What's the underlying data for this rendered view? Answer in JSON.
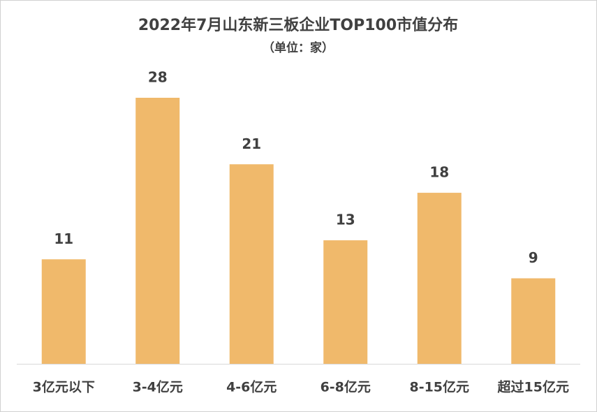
{
  "chart_data": {
    "type": "bar",
    "title": "2022年7月山东新三板企业TOP100市值分布",
    "subtitle": "（单位：家）",
    "categories": [
      "3亿元以下",
      "3-4亿元",
      "4-6亿元",
      "6-8亿元",
      "8-15亿元",
      "超过15亿元"
    ],
    "values": [
      11,
      28,
      21,
      13,
      18,
      9
    ],
    "color": "#f0b96b"
  }
}
